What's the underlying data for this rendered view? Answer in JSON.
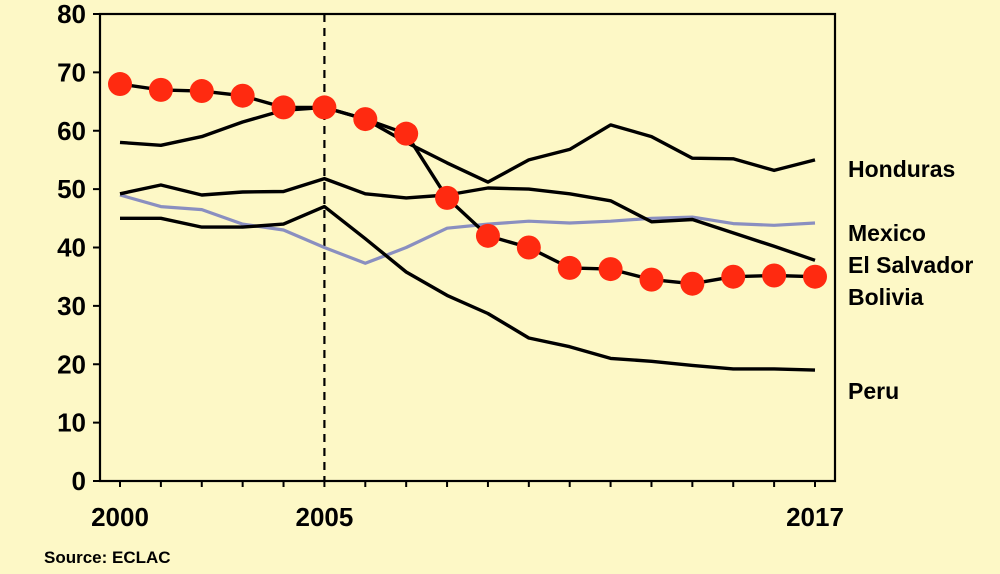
{
  "chart_data": {
    "type": "line",
    "title": "",
    "xlabel": "",
    "ylabel": "",
    "xlim": [
      2000,
      2017
    ],
    "ylim": [
      0,
      80
    ],
    "x_ticks": [
      "2000",
      "2005",
      "2017"
    ],
    "x_tick_values": [
      2000,
      2005,
      2017
    ],
    "y_ticks": [
      "0",
      "10",
      "20",
      "30",
      "40",
      "50",
      "60",
      "70",
      "80"
    ],
    "y_tick_values": [
      0,
      10,
      20,
      30,
      40,
      50,
      60,
      70,
      80
    ],
    "reference_line": {
      "x": 2005,
      "style": "dashed"
    },
    "grid": false,
    "legend": "right-side labels",
    "source": "Source: ECLAC",
    "colors": {
      "background": "#fdf8c6",
      "line": "#000000",
      "mexico": "#8a8fc0",
      "bolivia_marker": "#ff2a10"
    },
    "x": [
      2000,
      2001,
      2002,
      2003,
      2004,
      2005,
      2006,
      2007,
      2008,
      2009,
      2010,
      2011,
      2012,
      2013,
      2014,
      2015,
      2016,
      2017
    ],
    "series": [
      {
        "name": "Honduras",
        "values": [
          58,
          57.5,
          59,
          61.5,
          63.5,
          64,
          62,
          58,
          54.5,
          51.2,
          55,
          56.8,
          61,
          59,
          55.3,
          55.2,
          53.2,
          55
        ]
      },
      {
        "name": "Mexico",
        "values": [
          49,
          47,
          46.5,
          44,
          43,
          40,
          37.3,
          40,
          43.3,
          44,
          44.5,
          44.2,
          44.5,
          45,
          45.2,
          44.1,
          43.8,
          44.2
        ]
      },
      {
        "name": "El Salvador",
        "values": [
          49.2,
          50.7,
          49,
          49.5,
          49.6,
          51.8,
          49.2,
          48.5,
          49,
          50.2,
          50,
          49.2,
          48,
          44.4,
          44.8,
          42.5,
          40.2,
          37.8
        ]
      },
      {
        "name": "Bolivia",
        "values": [
          68,
          67,
          66.8,
          66,
          64,
          64,
          62,
          59.5,
          48.5,
          42,
          40,
          36.5,
          36.3,
          34.5,
          33.8,
          35,
          35.2,
          35
        ],
        "markers": true
      },
      {
        "name": "Peru",
        "values": [
          45,
          45,
          43.5,
          43.5,
          44,
          47,
          41.5,
          35.8,
          31.8,
          28.7,
          24.5,
          23,
          21,
          20.5,
          19.8,
          19.2,
          19.2,
          19
        ]
      }
    ]
  }
}
